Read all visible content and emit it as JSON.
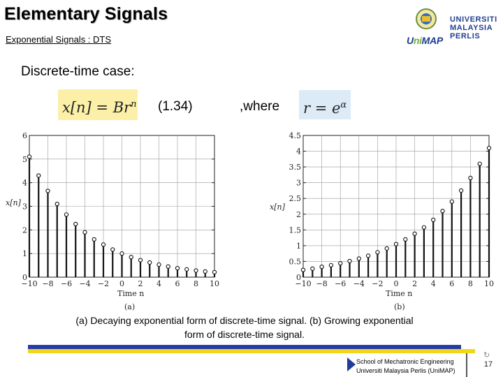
{
  "header": {
    "title": "Elementary Signals",
    "subtitle": "Exponential Signals : DTS"
  },
  "logo": {
    "brand_u": "U",
    "brand_ni": "ni",
    "brand_map": "MAP",
    "university_line1": "UNIVERSITI",
    "university_line2": "MALAYSIA",
    "university_line3": "PERLIS"
  },
  "content": {
    "heading": "Discrete-time case:",
    "equation_lhs": "x[n] = Br",
    "equation_exp": "n",
    "equation_number": "(1.34)",
    "where_text": ",where",
    "r_lhs": "r = e",
    "r_exp": "α",
    "caption_line1": "(a) Decaying exponential form of discrete-time signal. (b) Growing exponential",
    "caption_line2": "form of discrete-time signal."
  },
  "plot_a_labels": {
    "ylabel": "x[n]",
    "xlabel": "Time n",
    "panel": "(a)"
  },
  "plot_b_labels": {
    "ylabel": "x[n]",
    "xlabel": "Time n",
    "panel": "(b)"
  },
  "footer": {
    "line1": "School of Mechatronic Engineering",
    "line2": "Universiti Malaysia Perlis (UniMAP)",
    "page_number": "17"
  },
  "chart_data": [
    {
      "type": "scatter",
      "title": "",
      "xlabel": "Time n",
      "ylabel": "x[n]",
      "xlim": [
        -10,
        10
      ],
      "ylim": [
        0,
        6
      ],
      "xticks": [
        -10,
        -8,
        -6,
        -4,
        -2,
        0,
        2,
        4,
        6,
        8,
        10
      ],
      "yticks": [
        0,
        1,
        2,
        3,
        4,
        5,
        6
      ],
      "grid": true,
      "x": [
        -10,
        -9,
        -8,
        -7,
        -6,
        -5,
        -4,
        -3,
        -2,
        -1,
        0,
        1,
        2,
        3,
        4,
        5,
        6,
        7,
        8,
        9,
        10
      ],
      "values": [
        5.1,
        4.3,
        3.65,
        3.1,
        2.65,
        2.25,
        1.9,
        1.6,
        1.38,
        1.17,
        1.0,
        0.85,
        0.72,
        0.62,
        0.53,
        0.45,
        0.38,
        0.33,
        0.28,
        0.24,
        0.21
      ]
    },
    {
      "type": "scatter",
      "title": "",
      "xlabel": "Time n",
      "ylabel": "x[n]",
      "xlim": [
        -10,
        10
      ],
      "ylim": [
        0,
        4.5
      ],
      "xticks": [
        -10,
        -8,
        -6,
        -4,
        -2,
        0,
        2,
        4,
        6,
        8,
        10
      ],
      "yticks": [
        0,
        0.5,
        1,
        1.5,
        2,
        2.5,
        3,
        3.5,
        4,
        4.5
      ],
      "grid": true,
      "x": [
        -10,
        -9,
        -8,
        -7,
        -6,
        -5,
        -4,
        -3,
        -2,
        -1,
        0,
        1,
        2,
        3,
        4,
        5,
        6,
        7,
        8,
        9,
        10
      ],
      "values": [
        0.23,
        0.27,
        0.33,
        0.38,
        0.44,
        0.51,
        0.59,
        0.68,
        0.79,
        0.91,
        1.05,
        1.2,
        1.38,
        1.58,
        1.82,
        2.1,
        2.4,
        2.75,
        3.15,
        3.6,
        4.1
      ]
    }
  ]
}
